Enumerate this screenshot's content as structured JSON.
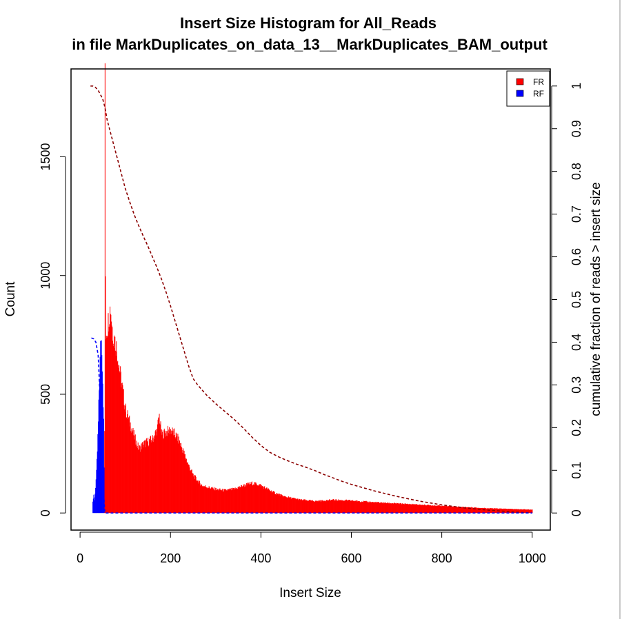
{
  "chart_data": {
    "type": "bar",
    "title": [
      "Insert Size Histogram for All_Reads",
      "in file MarkDuplicates_on_data_13__MarkDuplicates_BAM_output"
    ],
    "xlabel": "Insert Size",
    "ylabel": "Count",
    "y2label": "cumulative fraction of reads > insert size",
    "xlim": [
      -20,
      1040
    ],
    "ylim": [
      -72,
      1870
    ],
    "y2lim": [
      -0.04,
      1.04
    ],
    "x_ticks": [
      0,
      200,
      400,
      600,
      800,
      1000
    ],
    "x_tick_labels": [
      "0",
      "200",
      "400",
      "600",
      "800",
      "1000"
    ],
    "y_ticks": [
      0,
      500,
      1000,
      1500
    ],
    "y_tick_labels": [
      "0",
      "500",
      "1000",
      "1500"
    ],
    "y2_ticks": [
      0,
      0.1,
      0.2,
      0.3,
      0.4,
      0.5,
      0.6,
      0.7,
      0.8,
      0.9,
      1
    ],
    "y2_tick_labels": [
      "0",
      "0.1",
      "0.2",
      "0.3",
      "0.4",
      "0.5",
      "0.6",
      "0.7",
      "0.8",
      "0.9",
      "1"
    ],
    "legend": {
      "position": "top-right",
      "entries": [
        {
          "label": "FR",
          "color": "#ff0000"
        },
        {
          "label": "RF",
          "color": "#0000ff"
        }
      ]
    },
    "series": [
      {
        "name": "FR",
        "color": "#ff0000",
        "kind": "histogram",
        "profile": [
          [
            53,
            0
          ],
          [
            54,
            350
          ],
          [
            55,
            1800
          ],
          [
            56,
            1000
          ],
          [
            57,
            760
          ],
          [
            60,
            780
          ],
          [
            63,
            820
          ],
          [
            67,
            870
          ],
          [
            72,
            760
          ],
          [
            80,
            700
          ],
          [
            90,
            570
          ],
          [
            100,
            440
          ],
          [
            110,
            380
          ],
          [
            120,
            320
          ],
          [
            130,
            270
          ],
          [
            140,
            290
          ],
          [
            150,
            300
          ],
          [
            160,
            310
          ],
          [
            170,
            350
          ],
          [
            175,
            410
          ],
          [
            180,
            330
          ],
          [
            190,
            340
          ],
          [
            200,
            350
          ],
          [
            210,
            330
          ],
          [
            220,
            300
          ],
          [
            230,
            250
          ],
          [
            240,
            200
          ],
          [
            250,
            160
          ],
          [
            260,
            135
          ],
          [
            270,
            115
          ],
          [
            280,
            110
          ],
          [
            300,
            100
          ],
          [
            320,
            95
          ],
          [
            340,
            100
          ],
          [
            360,
            115
          ],
          [
            380,
            125
          ],
          [
            395,
            120
          ],
          [
            410,
            105
          ],
          [
            430,
            85
          ],
          [
            450,
            70
          ],
          [
            470,
            62
          ],
          [
            490,
            55
          ],
          [
            520,
            50
          ],
          [
            560,
            55
          ],
          [
            600,
            52
          ],
          [
            650,
            45
          ],
          [
            700,
            40
          ],
          [
            750,
            35
          ],
          [
            800,
            30
          ],
          [
            850,
            25
          ],
          [
            900,
            20
          ],
          [
            950,
            17
          ],
          [
            1000,
            14
          ]
        ]
      },
      {
        "name": "RF",
        "color": "#0000ff",
        "kind": "histogram",
        "profile": [
          [
            27,
            0
          ],
          [
            28,
            50
          ],
          [
            30,
            72
          ],
          [
            32,
            55
          ],
          [
            34,
            110
          ],
          [
            36,
            170
          ],
          [
            38,
            260
          ],
          [
            40,
            380
          ],
          [
            42,
            520
          ],
          [
            44,
            640
          ],
          [
            46,
            750
          ],
          [
            48,
            700
          ],
          [
            50,
            560
          ],
          [
            52,
            380
          ],
          [
            54,
            0
          ]
        ]
      },
      {
        "name": "FR cumulative",
        "color": "#8b0000",
        "kind": "line",
        "style": "dashed",
        "axis": "right",
        "x": [
          23,
          28,
          33,
          40,
          50,
          55,
          60,
          70,
          80,
          90,
          100,
          110,
          120,
          130,
          140,
          150,
          160,
          170,
          180,
          190,
          200,
          210,
          220,
          230,
          240,
          250,
          260,
          270,
          280,
          290,
          300,
          320,
          340,
          360,
          380,
          400,
          420,
          440,
          460,
          480,
          500,
          520,
          540,
          560,
          580,
          600,
          650,
          700,
          750,
          800,
          850,
          900,
          950,
          1000
        ],
        "y": [
          1,
          1,
          0.998,
          0.99,
          0.97,
          0.95,
          0.92,
          0.88,
          0.84,
          0.8,
          0.76,
          0.728,
          0.698,
          0.672,
          0.648,
          0.625,
          0.6,
          0.575,
          0.548,
          0.518,
          0.485,
          0.45,
          0.415,
          0.38,
          0.345,
          0.315,
          0.3,
          0.288,
          0.276,
          0.266,
          0.256,
          0.238,
          0.22,
          0.2,
          0.178,
          0.158,
          0.142,
          0.131,
          0.122,
          0.114,
          0.107,
          0.099,
          0.09,
          0.082,
          0.074,
          0.067,
          0.052,
          0.039,
          0.028,
          0.019,
          0.012,
          0.007,
          0.003,
          0
        ]
      },
      {
        "name": "RF cumulative",
        "color": "#0000ff",
        "kind": "line",
        "style": "dashed",
        "axis": "right",
        "x": [
          25,
          30,
          35,
          40,
          45,
          50,
          55,
          60,
          100,
          200,
          400,
          600,
          800,
          1000
        ],
        "y": [
          0.41,
          0.408,
          0.4,
          0.37,
          0.25,
          0.08,
          0,
          0,
          0,
          0,
          0,
          0,
          0,
          0
        ]
      }
    ]
  }
}
